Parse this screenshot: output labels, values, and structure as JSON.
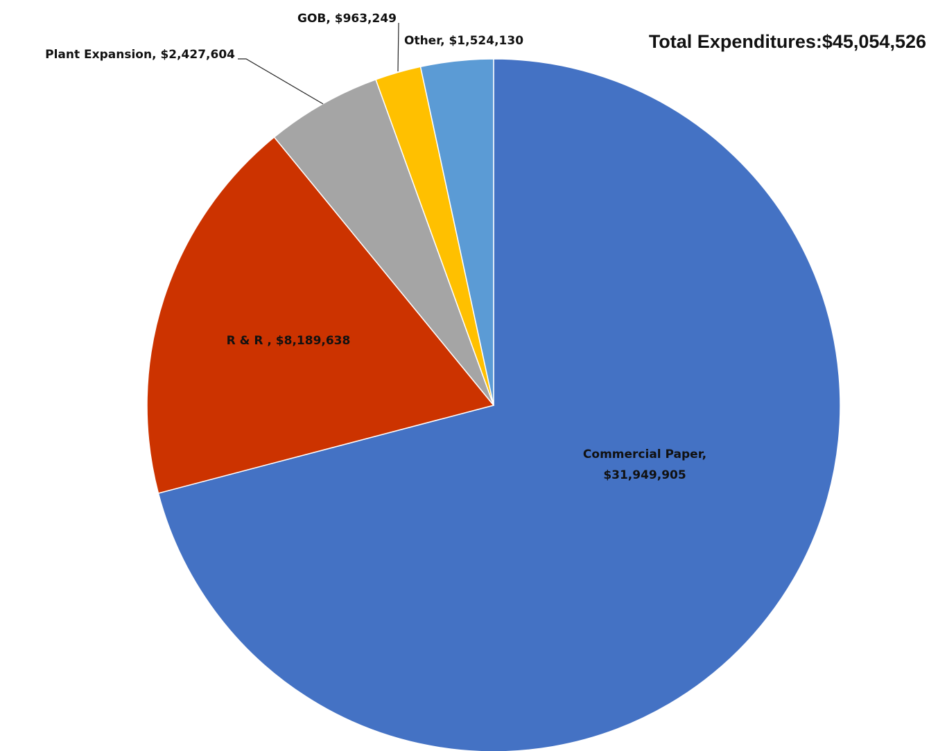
{
  "chart_data": {
    "type": "pie",
    "title": "Total Expenditures:$45,054,526",
    "slices": [
      {
        "name": "Commercial Paper",
        "value": 31949905,
        "label_lines": [
          "Commercial Paper,",
          "$31,949,905"
        ],
        "color": "#4472C4"
      },
      {
        "name": "R & R",
        "value": 8189638,
        "label_lines": [
          "R & R , $8,189,638"
        ],
        "color": "#CC3300"
      },
      {
        "name": "Plant Expansion",
        "value": 2427604,
        "label_lines": [
          "Plant Expansion, $2,427,604"
        ],
        "color": "#A5A5A5"
      },
      {
        "name": "GOB",
        "value": 963249,
        "label_lines": [
          "GOB, $963,249"
        ],
        "color": "#FFC000"
      },
      {
        "name": "Other",
        "value": 1524130,
        "label_lines": [
          "Other, $1,524,130"
        ],
        "color": "#5B9BD5"
      }
    ],
    "start": "12 o'clock",
    "direction": "clockwise"
  }
}
